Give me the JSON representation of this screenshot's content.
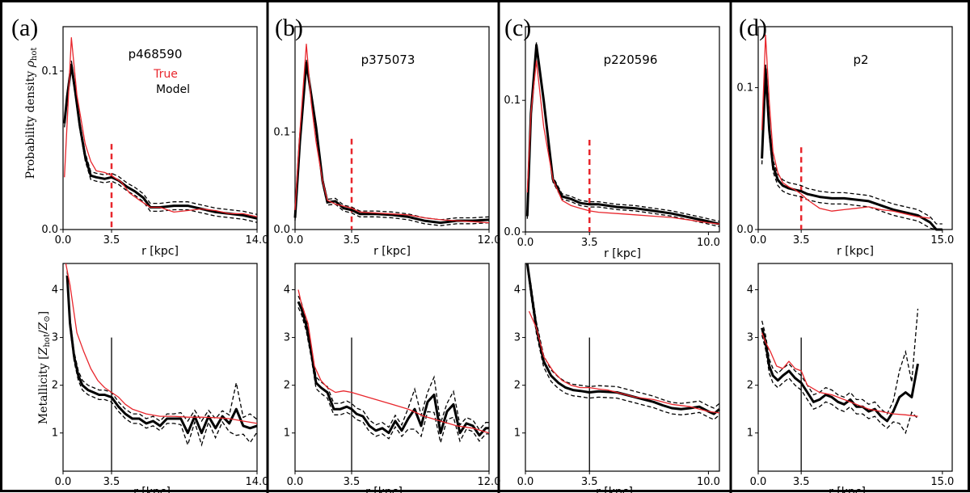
{
  "colors": {
    "true": "#e8262c",
    "model": "#000000",
    "band": "#000000",
    "frame": "#000000"
  },
  "legend": {
    "true": "True",
    "model": "Model"
  },
  "ylabels": {
    "density_prefix": "Probability density ",
    "density_symbol": "ρ",
    "density_sub": "hot",
    "metal_prefix": "Metallicity [",
    "metal_z": "Z",
    "metal_sub1": "hot",
    "metal_slash": "/",
    "metal_sub2": "⊙",
    "metal_suffix": "]"
  },
  "chart_data": [
    {
      "panel": "(a)",
      "galaxy": "p468590",
      "type": "line",
      "xlabel": "r [kpc]",
      "xlim": [
        0,
        14.0
      ],
      "xticks": [
        0.0,
        3.5,
        14.0
      ],
      "xtick_labels": [
        "0.0",
        "3.5",
        "14.0"
      ],
      "marker_x": 3.5,
      "density": {
        "ylim": [
          0,
          0.128
        ],
        "yticks": [
          0.0,
          0.1
        ],
        "ytick_labels": [
          "0.0",
          "0.1"
        ],
        "marker_top": 0.054,
        "true_x": [
          0.1,
          0.6,
          1.0,
          1.6,
          2.0,
          2.4,
          3.0,
          3.5,
          4.2,
          4.8,
          5.6,
          6.3,
          7.0,
          8.0,
          9.0,
          10.0,
          11.0,
          12.0,
          13.0,
          14.0
        ],
        "true_y": [
          0.033,
          0.121,
          0.085,
          0.054,
          0.043,
          0.037,
          0.036,
          0.034,
          0.03,
          0.023,
          0.018,
          0.014,
          0.014,
          0.011,
          0.012,
          0.013,
          0.012,
          0.01,
          0.01,
          0.008
        ],
        "model_x": [
          0.1,
          0.3,
          0.6,
          0.9,
          1.2,
          1.6,
          2.0,
          2.4,
          3.0,
          3.5,
          4.0,
          4.6,
          5.2,
          5.8,
          6.3,
          7.0,
          8.0,
          9.0,
          10.0,
          11.0,
          12.0,
          13.0,
          14.0
        ],
        "model_y": [
          0.067,
          0.084,
          0.104,
          0.086,
          0.066,
          0.046,
          0.034,
          0.033,
          0.032,
          0.033,
          0.031,
          0.027,
          0.024,
          0.02,
          0.014,
          0.014,
          0.015,
          0.015,
          0.013,
          0.011,
          0.01,
          0.009,
          0.007
        ],
        "band": 0.0025
      },
      "metal": {
        "ylim": [
          0.2,
          4.55
        ],
        "yticks": [
          1,
          2,
          3,
          4
        ],
        "ytick_labels": [
          "1",
          "2",
          "3",
          "4"
        ],
        "marker_top": 3.0,
        "true_x": [
          0.2,
          0.5,
          1.0,
          1.5,
          2.0,
          2.5,
          3.0,
          3.5,
          4.0,
          4.5,
          5.0,
          6.0,
          7.0,
          8.0,
          9.0,
          10.0,
          11.0,
          12.0,
          13.0,
          14.0
        ],
        "true_y": [
          4.6,
          4.1,
          3.1,
          2.7,
          2.35,
          2.1,
          1.95,
          1.85,
          1.75,
          1.6,
          1.5,
          1.4,
          1.35,
          1.35,
          1.33,
          1.33,
          1.32,
          1.3,
          1.25,
          1.2
        ],
        "model_x": [
          0.3,
          0.5,
          0.8,
          1.1,
          1.4,
          1.8,
          2.2,
          2.6,
          3.0,
          3.5,
          4.0,
          4.5,
          5.0,
          5.5,
          6.0,
          6.5,
          7.0,
          7.5,
          8.0,
          8.5,
          9.0,
          9.5,
          10.0,
          10.5,
          11.0,
          11.5,
          12.0,
          12.5,
          13.0,
          13.5,
          14.0
        ],
        "model_y": [
          4.3,
          3.3,
          2.6,
          2.2,
          2.0,
          1.9,
          1.85,
          1.8,
          1.8,
          1.75,
          1.55,
          1.4,
          1.3,
          1.3,
          1.2,
          1.25,
          1.15,
          1.3,
          1.3,
          1.3,
          1.0,
          1.35,
          1.0,
          1.35,
          1.1,
          1.35,
          1.2,
          1.5,
          1.15,
          1.1,
          1.15
        ],
        "band": 0.1,
        "band_extra": [
          [
            9.0,
            0.15
          ],
          [
            10.0,
            0.15
          ],
          [
            11.0,
            0.1
          ],
          [
            12.5,
            0.45
          ],
          [
            13.5,
            0.2
          ]
        ]
      }
    },
    {
      "panel": "(b)",
      "galaxy": "p375073",
      "type": "line",
      "xlabel": "r [kpc]",
      "xlim": [
        0,
        12.0
      ],
      "xticks": [
        0.0,
        3.5,
        12.0
      ],
      "xtick_labels": [
        "0.0",
        "3.5",
        "12.0"
      ],
      "marker_x": 3.5,
      "density": {
        "ylim": [
          0,
          0.208
        ],
        "yticks": [
          0.0,
          0.1
        ],
        "ytick_labels": [
          "0.0",
          "0.1"
        ],
        "marker_top": 0.093,
        "true_x": [
          0.0,
          0.3,
          0.7,
          1.0,
          1.3,
          1.7,
          2.0,
          2.5,
          3.0,
          3.5,
          4.0,
          5.0,
          6.0,
          7.0,
          8.0,
          9.0,
          10.0,
          11.0,
          12.0
        ],
        "true_y": [
          0.02,
          0.1,
          0.19,
          0.13,
          0.09,
          0.05,
          0.03,
          0.026,
          0.024,
          0.022,
          0.018,
          0.017,
          0.016,
          0.015,
          0.012,
          0.01,
          0.009,
          0.008,
          0.007
        ],
        "model_x": [
          0.0,
          0.3,
          0.7,
          1.0,
          1.3,
          1.7,
          2.0,
          2.5,
          3.0,
          3.5,
          4.0,
          5.0,
          6.0,
          7.0,
          8.0,
          9.0,
          10.0,
          11.0,
          12.0
        ],
        "model_y": [
          0.012,
          0.09,
          0.171,
          0.138,
          0.105,
          0.05,
          0.028,
          0.029,
          0.022,
          0.02,
          0.016,
          0.016,
          0.015,
          0.013,
          0.009,
          0.007,
          0.009,
          0.009,
          0.01
        ],
        "band": 0.003
      },
      "metal": {
        "ylim": [
          0.2,
          4.55
        ],
        "yticks": [
          1,
          2,
          3,
          4
        ],
        "ytick_labels": [
          "1",
          "2",
          "3",
          "4"
        ],
        "marker_top": 3.0,
        "true_x": [
          0.2,
          0.4,
          0.8,
          1.2,
          1.6,
          2.0,
          2.5,
          3.0,
          3.5,
          4.0,
          5.0,
          6.0,
          7.0,
          8.0,
          9.0,
          10.0,
          11.0,
          12.0
        ],
        "true_y": [
          4.0,
          3.7,
          3.3,
          2.4,
          2.1,
          1.95,
          1.85,
          1.88,
          1.85,
          1.8,
          1.7,
          1.6,
          1.5,
          1.35,
          1.25,
          1.15,
          1.1,
          1.0
        ],
        "model_x": [
          0.2,
          0.4,
          0.7,
          1.0,
          1.3,
          1.6,
          2.0,
          2.4,
          2.8,
          3.2,
          3.5,
          3.8,
          4.2,
          4.6,
          5.0,
          5.4,
          5.8,
          6.2,
          6.6,
          7.0,
          7.4,
          7.8,
          8.2,
          8.6,
          9.0,
          9.4,
          9.8,
          10.2,
          10.6,
          11.0,
          11.4,
          11.8,
          12.0
        ],
        "model_y": [
          3.75,
          3.6,
          3.25,
          2.7,
          2.05,
          1.95,
          1.85,
          1.5,
          1.5,
          1.55,
          1.5,
          1.4,
          1.35,
          1.15,
          1.05,
          1.1,
          1.0,
          1.25,
          1.05,
          1.3,
          1.5,
          1.15,
          1.65,
          1.8,
          1.0,
          1.45,
          1.6,
          1.0,
          1.2,
          1.15,
          0.95,
          1.1,
          1.1
        ],
        "band": 0.12,
        "band_extra": [
          [
            7.4,
            0.3
          ],
          [
            8.6,
            0.25
          ],
          [
            9.8,
            0.15
          ]
        ]
      }
    },
    {
      "panel": "(c)",
      "galaxy": "p220596",
      "type": "line",
      "xlabel": "r [kpc]",
      "xlim": [
        0,
        10.6
      ],
      "xticks": [
        0.0,
        3.5,
        10.0
      ],
      "xtick_labels": [
        "0.0",
        "3.5",
        "10.0"
      ],
      "marker_x": 3.5,
      "density": {
        "ylim": [
          0,
          0.156
        ],
        "yticks": [
          0.0,
          0.1
        ],
        "ytick_labels": [
          "0.0",
          "0.1"
        ],
        "marker_top": 0.07,
        "true_x": [
          0.1,
          0.3,
          0.6,
          1.0,
          1.5,
          2.0,
          2.5,
          3.0,
          3.5,
          4.0,
          5.0,
          6.0,
          7.0,
          8.0,
          9.0,
          10.0,
          10.6
        ],
        "true_y": [
          0.03,
          0.09,
          0.13,
          0.08,
          0.04,
          0.024,
          0.02,
          0.018,
          0.016,
          0.015,
          0.014,
          0.013,
          0.012,
          0.011,
          0.009,
          0.007,
          0.006
        ],
        "model_x": [
          0.1,
          0.3,
          0.6,
          1.0,
          1.5,
          2.0,
          2.5,
          3.0,
          3.5,
          4.0,
          5.0,
          6.0,
          7.0,
          8.0,
          9.0,
          10.0,
          10.6
        ],
        "model_y": [
          0.012,
          0.09,
          0.142,
          0.1,
          0.04,
          0.027,
          0.025,
          0.022,
          0.021,
          0.021,
          0.019,
          0.018,
          0.016,
          0.014,
          0.011,
          0.008,
          0.006
        ],
        "band": 0.002
      },
      "metal": {
        "ylim": [
          0.2,
          4.55
        ],
        "yticks": [
          1,
          2,
          3,
          4
        ],
        "ytick_labels": [
          "1",
          "2",
          "3",
          "4"
        ],
        "marker_top": 3.0,
        "true_x": [
          0.2,
          0.6,
          1.0,
          1.5,
          2.0,
          2.5,
          3.0,
          3.5,
          4.0,
          4.5,
          5.0,
          6.0,
          7.0,
          8.0,
          9.0,
          10.0,
          10.6
        ],
        "true_y": [
          3.55,
          3.2,
          2.6,
          2.3,
          2.1,
          2.0,
          1.95,
          1.95,
          1.92,
          1.9,
          1.85,
          1.75,
          1.7,
          1.6,
          1.55,
          1.45,
          1.42
        ],
        "model_x": [
          0.1,
          0.3,
          0.6,
          1.0,
          1.4,
          1.8,
          2.2,
          2.6,
          3.0,
          3.5,
          4.0,
          4.5,
          5.0,
          5.5,
          6.0,
          6.5,
          7.0,
          7.5,
          8.0,
          8.5,
          9.0,
          9.5,
          10.0,
          10.3,
          10.6
        ],
        "model_y": [
          4.6,
          4.0,
          3.2,
          2.5,
          2.2,
          2.05,
          1.95,
          1.9,
          1.88,
          1.85,
          1.87,
          1.86,
          1.85,
          1.8,
          1.75,
          1.7,
          1.65,
          1.58,
          1.52,
          1.5,
          1.52,
          1.55,
          1.45,
          1.4,
          1.5
        ],
        "band": 0.12
      }
    },
    {
      "panel": "(d)",
      "galaxy": "p2",
      "type": "line",
      "xlabel": "r [kpc]",
      "xlim": [
        0,
        15.8
      ],
      "xticks": [
        0.0,
        3.5,
        15.0
      ],
      "xtick_labels": [
        "0.0",
        "3.5",
        "15.0"
      ],
      "marker_x": 3.5,
      "density": {
        "ylim": [
          0,
          0.143
        ],
        "yticks": [
          0.0,
          0.1
        ],
        "ytick_labels": [
          "0.0",
          "0.1"
        ],
        "marker_top": 0.058,
        "true_x": [
          0.3,
          0.6,
          0.9,
          1.2,
          1.6,
          2.0,
          2.5,
          3.0,
          3.5,
          4.0,
          5.0,
          6.0,
          7.0,
          8.0,
          9.0,
          10.0,
          11.0,
          12.0,
          13.0,
          14.0
        ],
        "true_y": [
          0.07,
          0.137,
          0.09,
          0.055,
          0.04,
          0.033,
          0.03,
          0.028,
          0.025,
          0.021,
          0.015,
          0.013,
          0.014,
          0.015,
          0.016,
          0.014,
          0.013,
          0.011,
          0.009,
          0.008
        ],
        "model_x": [
          0.3,
          0.6,
          0.9,
          1.2,
          1.6,
          2.0,
          2.5,
          3.0,
          3.5,
          4.0,
          5.0,
          6.0,
          7.0,
          8.0,
          9.0,
          10.0,
          11.0,
          12.0,
          13.0,
          14.0,
          14.5,
          15.0
        ],
        "model_y": [
          0.05,
          0.113,
          0.07,
          0.045,
          0.035,
          0.031,
          0.029,
          0.028,
          0.027,
          0.025,
          0.023,
          0.022,
          0.022,
          0.021,
          0.02,
          0.017,
          0.014,
          0.012,
          0.01,
          0.005,
          0.0,
          0.0
        ],
        "band": 0.004
      },
      "metal": {
        "ylim": [
          0.2,
          4.55
        ],
        "yticks": [
          1,
          2,
          3,
          4
        ],
        "ytick_labels": [
          "1",
          "2",
          "3",
          "4"
        ],
        "marker_top": 3.0,
        "true_x": [
          0.3,
          0.6,
          1.0,
          1.5,
          2.0,
          2.5,
          3.0,
          3.5,
          4.0,
          5.0,
          6.0,
          7.0,
          8.0,
          9.0,
          10.0,
          11.0,
          12.0,
          13.0
        ],
        "true_y": [
          3.1,
          2.9,
          2.7,
          2.4,
          2.35,
          2.5,
          2.35,
          2.3,
          2.0,
          1.85,
          1.8,
          1.7,
          1.6,
          1.5,
          1.45,
          1.4,
          1.38,
          1.35
        ],
        "model_x": [
          0.3,
          0.6,
          0.9,
          1.2,
          1.6,
          2.0,
          2.5,
          3.0,
          3.5,
          4.0,
          4.5,
          5.0,
          5.5,
          6.0,
          6.5,
          7.0,
          7.5,
          8.0,
          8.5,
          9.0,
          9.5,
          10.0,
          10.5,
          11.0,
          11.5,
          12.0,
          12.5,
          13.0
        ],
        "model_y": [
          3.2,
          2.9,
          2.4,
          2.2,
          2.1,
          2.2,
          2.3,
          2.15,
          2.05,
          1.85,
          1.65,
          1.7,
          1.8,
          1.75,
          1.65,
          1.6,
          1.7,
          1.55,
          1.55,
          1.45,
          1.5,
          1.35,
          1.25,
          1.45,
          1.75,
          1.85,
          1.75,
          2.45
        ],
        "band": 0.15,
        "band_extra": [
          [
            12.0,
            0.7
          ],
          [
            13.0,
            1.0
          ],
          [
            11.5,
            0.4
          ]
        ]
      }
    }
  ]
}
